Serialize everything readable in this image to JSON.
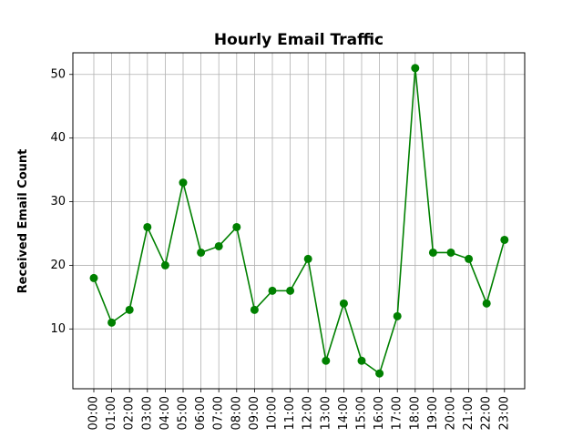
{
  "chart_data": {
    "type": "line",
    "title": "Hourly Email Traffic",
    "xlabel": "",
    "ylabel": "Received Email Count",
    "categories": [
      "00:00",
      "01:00",
      "02:00",
      "03:00",
      "04:00",
      "05:00",
      "06:00",
      "07:00",
      "08:00",
      "09:00",
      "10:00",
      "11:00",
      "12:00",
      "13:00",
      "14:00",
      "15:00",
      "16:00",
      "17:00",
      "18:00",
      "19:00",
      "20:00",
      "21:00",
      "22:00",
      "23:00"
    ],
    "series": [
      {
        "values": [
          18,
          11,
          13,
          26,
          20,
          33,
          22,
          23,
          26,
          13,
          16,
          16,
          21,
          5,
          14,
          5,
          3,
          12,
          51,
          22,
          22,
          21,
          14,
          24
        ]
      }
    ],
    "ylim": [
      0.6,
      53.4
    ],
    "yticks": [
      10,
      20,
      30,
      40,
      50
    ],
    "grid": true,
    "color": "#008000",
    "marker": "circle"
  }
}
